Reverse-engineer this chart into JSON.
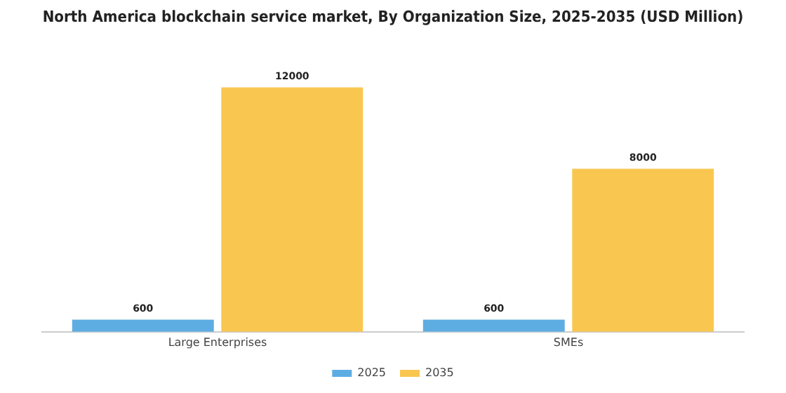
{
  "chart_data": {
    "type": "bar",
    "title": "North America blockchain service market, By Organization Size, 2025-2035 (USD Million)",
    "categories": [
      "Large Enterprises",
      "SMEs"
    ],
    "series": [
      {
        "name": "2025",
        "color": "#5dade2",
        "values": [
          600,
          600
        ]
      },
      {
        "name": "2035",
        "color": "#f9c74f",
        "values": [
          12000,
          8000
        ]
      }
    ],
    "data_labels": true,
    "legend": "bottom",
    "grid": false
  }
}
